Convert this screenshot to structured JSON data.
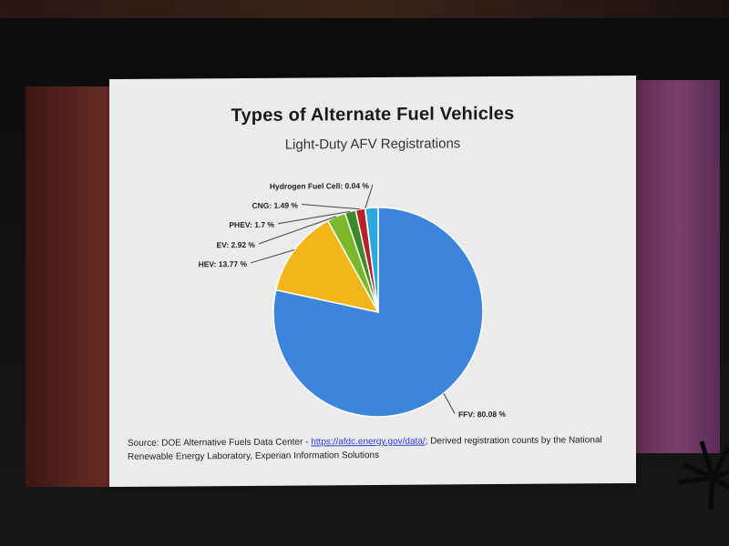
{
  "chart_data": {
    "type": "pie",
    "title": "Types of Alternate Fuel Vehicles",
    "subtitle": "Light-Duty AFV Registrations",
    "slices": [
      {
        "label": "FFV: 80.08 %",
        "value": 80.08,
        "color": "#3d84dc"
      },
      {
        "label": "HEV: 13.77 %",
        "value": 13.77,
        "color": "#f2b51a"
      },
      {
        "label": "EV: 2.92 %",
        "value": 2.92,
        "color": "#7cb82a"
      },
      {
        "label": "PHEV: 1.7 %",
        "value": 1.7,
        "color": "#3d8a2b"
      },
      {
        "label": "CNG: 1.49 %",
        "value": 1.49,
        "color": "#b72129"
      },
      {
        "label": "Hydrogen Fuel Cell: 0.04 %",
        "value": 0.04,
        "color": "#6a2b8e"
      }
    ],
    "extra_slice": {
      "value": 2.0,
      "color": "#29a9dd"
    }
  },
  "source": {
    "prefix": "Source: DOE Alternative Fuels Data Center - ",
    "link": "https://afdc.energy.gov/data/",
    "suffix": "; Derived registration counts by the National Renewable Energy Laboratory, Experian Information Solutions"
  }
}
